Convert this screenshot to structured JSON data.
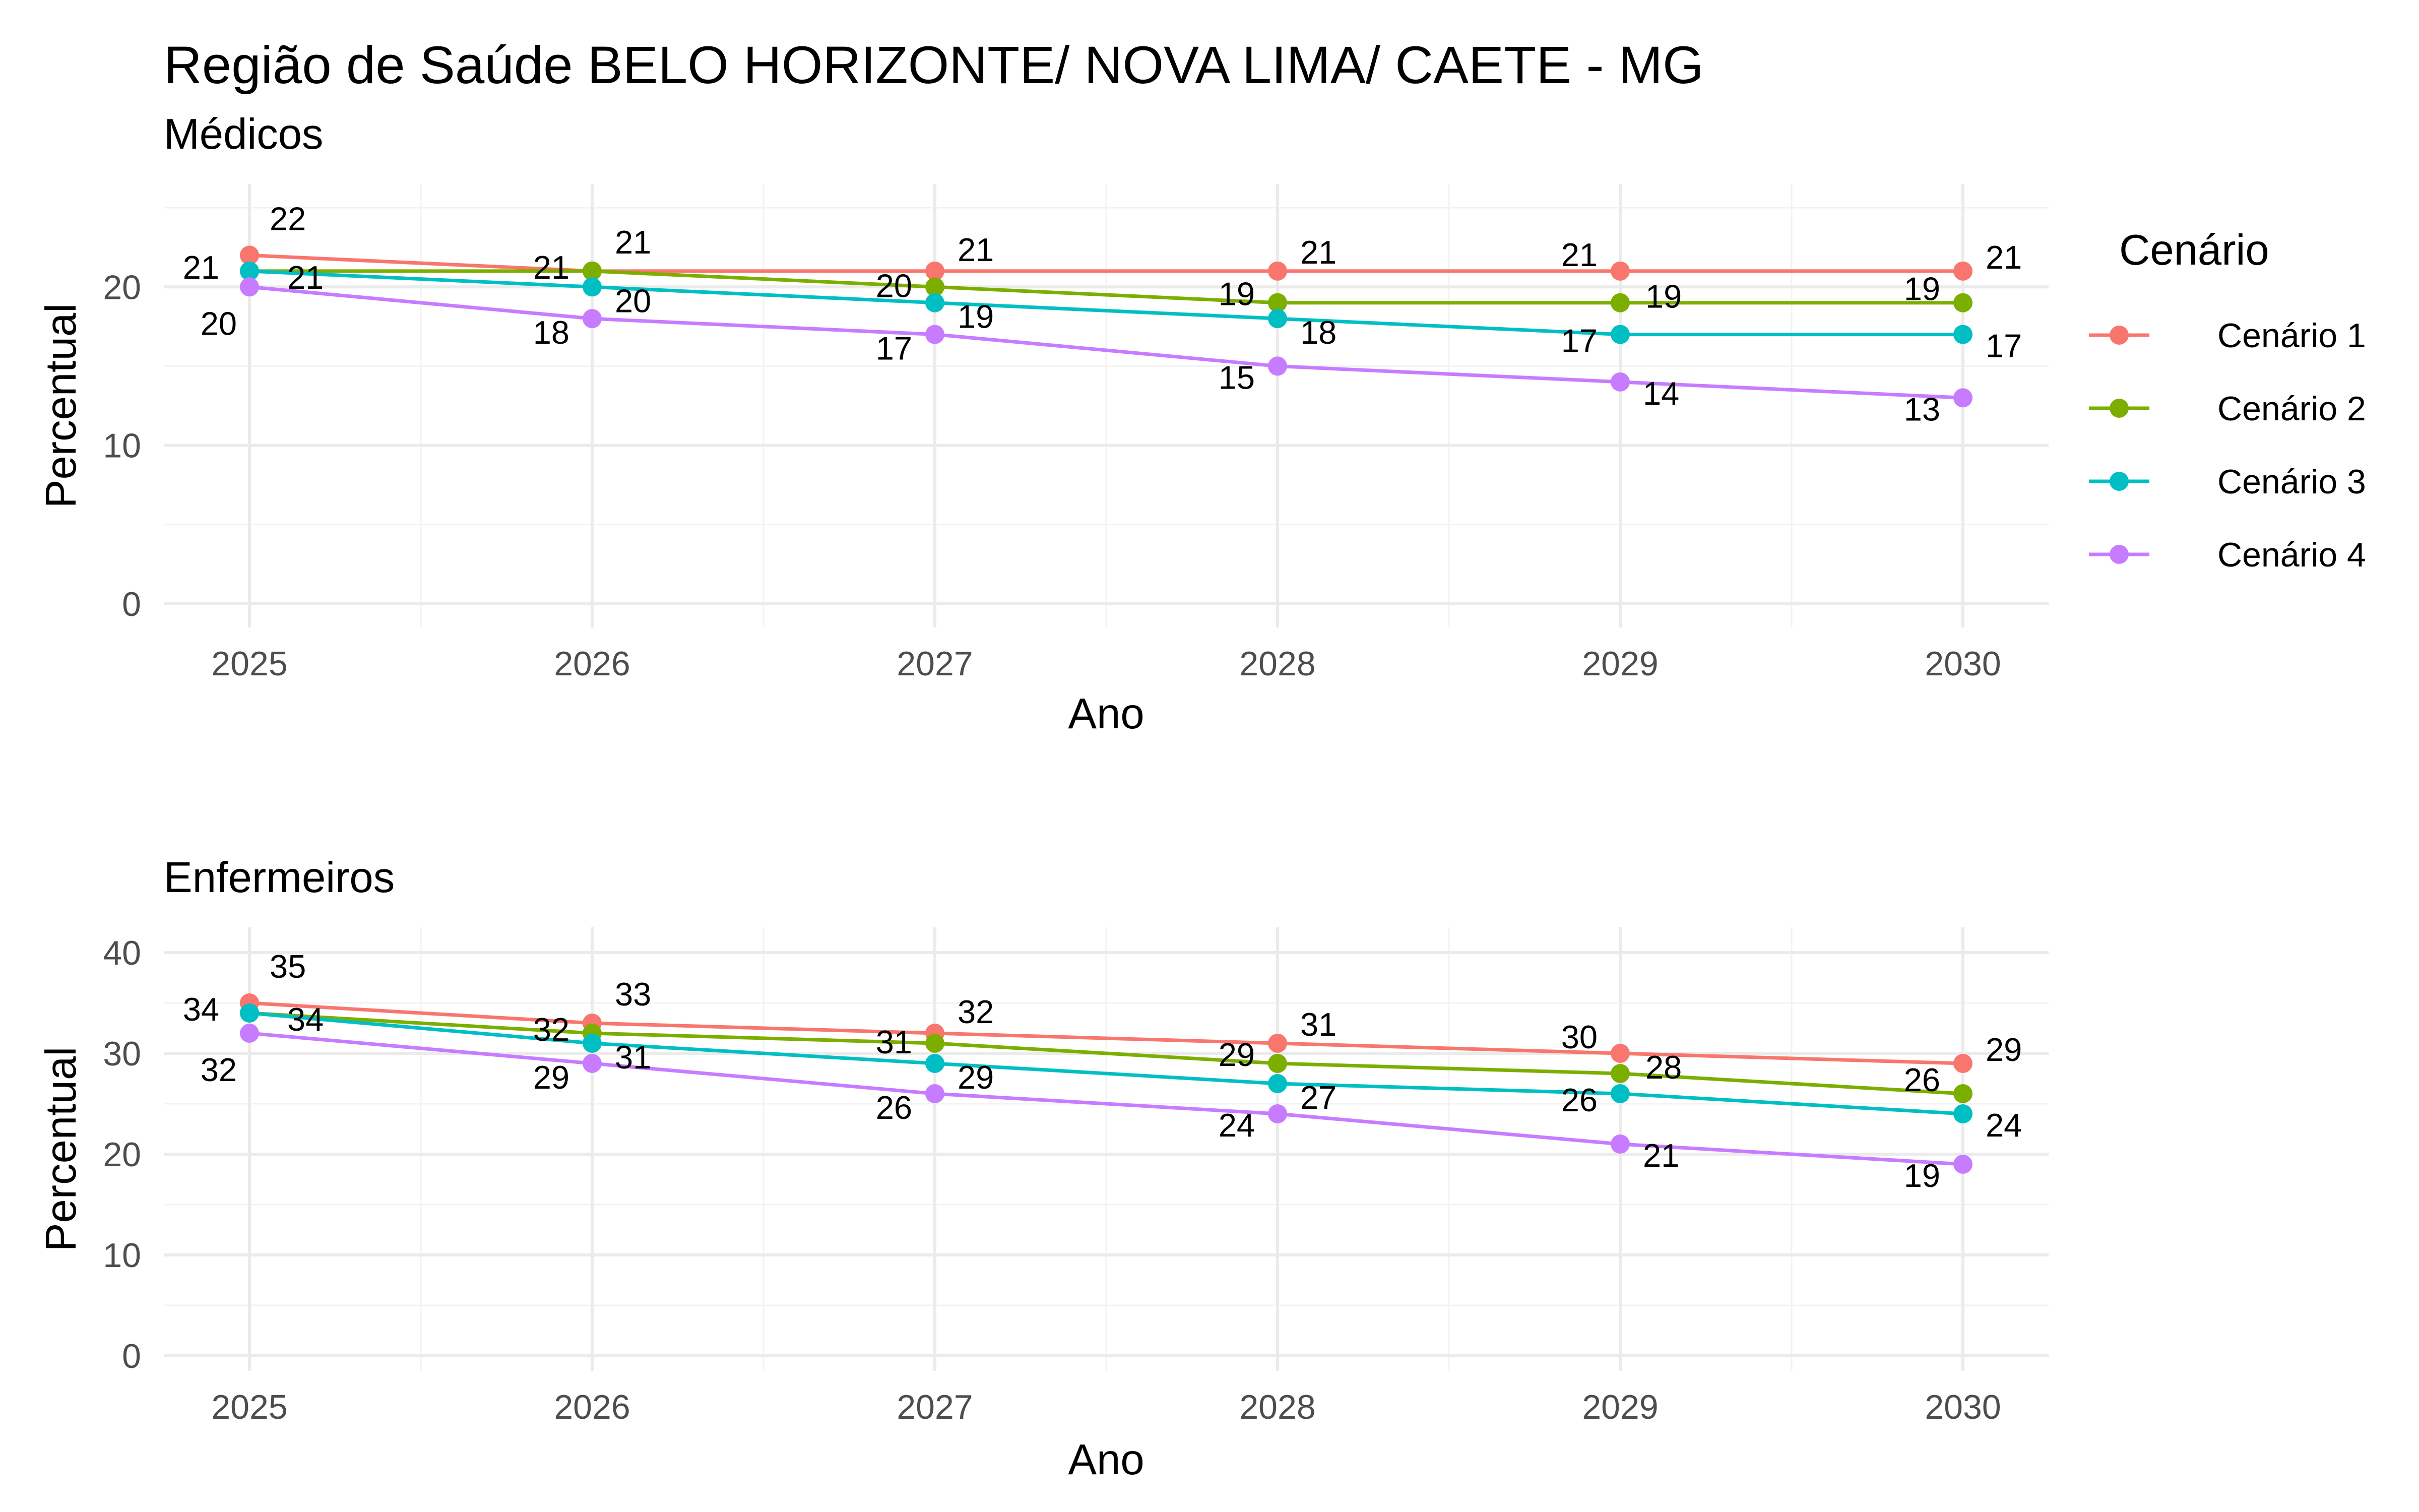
{
  "title": "Região de Saúde BELO HORIZONTE/ NOVA LIMA/ CAETE - MG",
  "legend": {
    "title": "Cenário",
    "items": [
      {
        "label": "Cenário 1",
        "color": "#F8766D"
      },
      {
        "label": "Cenário 2",
        "color": "#7CAE00"
      },
      {
        "label": "Cenário 3",
        "color": "#00BFC4"
      },
      {
        "label": "Cenário 4",
        "color": "#C77CFF"
      }
    ]
  },
  "chart_data": [
    {
      "type": "line",
      "subtitle": "Médicos",
      "xlabel": "Ano",
      "ylabel": "Percentual",
      "x": [
        2025,
        2026,
        2027,
        2028,
        2029,
        2030
      ],
      "ylim": [
        -1.5,
        26.5
      ],
      "yticks": [
        0,
        10,
        20
      ],
      "grid": true,
      "series": [
        {
          "name": "Cenário 1",
          "values": [
            22,
            21,
            21,
            21,
            21,
            21
          ]
        },
        {
          "name": "Cenário 2",
          "values": [
            21,
            21,
            20,
            19,
            19,
            19
          ]
        },
        {
          "name": "Cenário 3",
          "values": [
            21,
            20,
            19,
            18,
            17,
            17
          ]
        },
        {
          "name": "Cenário 4",
          "values": [
            20,
            18,
            17,
            15,
            14,
            13
          ]
        }
      ],
      "data_labels": [
        {
          "text": "22",
          "series": 0,
          "index": 0
        },
        {
          "text": "21",
          "series": 0,
          "index": 1
        },
        {
          "text": "21",
          "series": 0,
          "index": 2
        },
        {
          "text": "21",
          "series": 0,
          "index": 3
        },
        {
          "text": "21",
          "series": 0,
          "index": 4
        },
        {
          "text": "21",
          "series": 0,
          "index": 5
        },
        {
          "text": "21",
          "series": 1,
          "index": 0
        },
        {
          "text": "21",
          "series": 1,
          "index": 1
        },
        {
          "text": "20",
          "series": 1,
          "index": 2
        },
        {
          "text": "19",
          "series": 1,
          "index": 3
        },
        {
          "text": "19",
          "series": 1,
          "index": 4
        },
        {
          "text": "19",
          "series": 1,
          "index": 5
        },
        {
          "text": "21",
          "series": 2,
          "index": 0
        },
        {
          "text": "20",
          "series": 2,
          "index": 1
        },
        {
          "text": "19",
          "series": 2,
          "index": 2
        },
        {
          "text": "18",
          "series": 2,
          "index": 3
        },
        {
          "text": "17",
          "series": 2,
          "index": 4
        },
        {
          "text": "17",
          "series": 2,
          "index": 5
        },
        {
          "text": "20",
          "series": 3,
          "index": 0
        },
        {
          "text": "18",
          "series": 3,
          "index": 1
        },
        {
          "text": "17",
          "series": 3,
          "index": 2
        },
        {
          "text": "15",
          "series": 3,
          "index": 3
        },
        {
          "text": "14",
          "series": 3,
          "index": 4
        },
        {
          "text": "13",
          "series": 3,
          "index": 5
        }
      ]
    },
    {
      "type": "line",
      "subtitle": "Enfermeiros",
      "xlabel": "Ano",
      "ylabel": "Percentual",
      "x": [
        2025,
        2026,
        2027,
        2028,
        2029,
        2030
      ],
      "ylim": [
        -1.5,
        42.5
      ],
      "yticks": [
        0,
        10,
        20,
        30,
        40
      ],
      "grid": true,
      "series": [
        {
          "name": "Cenário 1",
          "values": [
            35,
            33,
            32,
            31,
            30,
            29
          ]
        },
        {
          "name": "Cenário 2",
          "values": [
            34,
            32,
            31,
            29,
            28,
            26
          ]
        },
        {
          "name": "Cenário 3",
          "values": [
            34,
            31,
            29,
            27,
            26,
            24
          ]
        },
        {
          "name": "Cenário 4",
          "values": [
            32,
            29,
            26,
            24,
            21,
            19
          ]
        }
      ],
      "data_labels": [
        {
          "text": "35",
          "series": 0,
          "index": 0
        },
        {
          "text": "33",
          "series": 0,
          "index": 1
        },
        {
          "text": "32",
          "series": 0,
          "index": 2
        },
        {
          "text": "31",
          "series": 0,
          "index": 3
        },
        {
          "text": "30",
          "series": 0,
          "index": 4
        },
        {
          "text": "29",
          "series": 0,
          "index": 5
        },
        {
          "text": "34",
          "series": 1,
          "index": 0
        },
        {
          "text": "32",
          "series": 1,
          "index": 1
        },
        {
          "text": "31",
          "series": 1,
          "index": 2
        },
        {
          "text": "29",
          "series": 1,
          "index": 3
        },
        {
          "text": "28",
          "series": 1,
          "index": 4
        },
        {
          "text": "26",
          "series": 1,
          "index": 5
        },
        {
          "text": "34",
          "series": 2,
          "index": 0
        },
        {
          "text": "31",
          "series": 2,
          "index": 1
        },
        {
          "text": "29",
          "series": 2,
          "index": 2
        },
        {
          "text": "27",
          "series": 2,
          "index": 3
        },
        {
          "text": "26",
          "series": 2,
          "index": 4
        },
        {
          "text": "24",
          "series": 2,
          "index": 5
        },
        {
          "text": "32",
          "series": 3,
          "index": 0
        },
        {
          "text": "29",
          "series": 3,
          "index": 1
        },
        {
          "text": "26",
          "series": 3,
          "index": 2
        },
        {
          "text": "24",
          "series": 3,
          "index": 3
        },
        {
          "text": "21",
          "series": 3,
          "index": 4
        },
        {
          "text": "19",
          "series": 3,
          "index": 5
        }
      ]
    }
  ]
}
